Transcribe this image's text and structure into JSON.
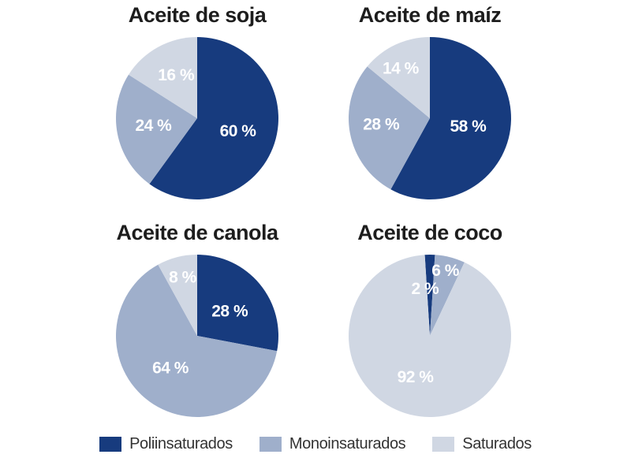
{
  "colors": {
    "poliinsaturados": "#173B7E",
    "monoinsaturados": "#9FAFCB",
    "saturados": "#D0D7E3"
  },
  "label_suffix": " %",
  "legend": [
    {
      "key": "poliinsaturados",
      "label": "Poliinsaturados"
    },
    {
      "key": "monoinsaturados",
      "label": "Monoinsaturados"
    },
    {
      "key": "saturados",
      "label": "Saturados"
    }
  ],
  "chart_data": [
    {
      "type": "pie",
      "title": "Aceite de soja",
      "rotation": 0,
      "slices": [
        {
          "name": "Poliinsaturados",
          "value": 60,
          "color": "poliinsaturados",
          "lp": [
            0.5,
            0.16
          ]
        },
        {
          "name": "Monoinsaturados",
          "value": 24,
          "color": "monoinsaturados",
          "lp": [
            -0.54,
            0.09
          ]
        },
        {
          "name": "Saturados",
          "value": 16,
          "color": "saturados",
          "lp": [
            -0.26,
            -0.53
          ]
        }
      ]
    },
    {
      "type": "pie",
      "title": "Aceite de maíz",
      "rotation": 0,
      "slices": [
        {
          "name": "Poliinsaturados",
          "value": 58,
          "color": "poliinsaturados",
          "lp": [
            0.47,
            0.1
          ]
        },
        {
          "name": "Monoinsaturados",
          "value": 28,
          "color": "monoinsaturados",
          "lp": [
            -0.6,
            0.08
          ]
        },
        {
          "name": "Saturados",
          "value": 14,
          "color": "saturados",
          "lp": [
            -0.36,
            -0.61
          ]
        }
      ]
    },
    {
      "type": "pie",
      "title": "Aceite de canola",
      "rotation": 0,
      "slices": [
        {
          "name": "Poliinsaturados",
          "value": 28,
          "color": "poliinsaturados",
          "lp": [
            0.4,
            -0.3
          ]
        },
        {
          "name": "Monoinsaturados",
          "value": 64,
          "color": "monoinsaturados",
          "lp": [
            -0.33,
            0.4
          ]
        },
        {
          "name": "Saturados",
          "value": 8,
          "color": "saturados",
          "lp": [
            -0.18,
            -0.72
          ]
        }
      ]
    },
    {
      "type": "pie",
      "title": "Aceite de coco",
      "rotation": -3.6,
      "slices": [
        {
          "name": "Poliinsaturados",
          "value": 2,
          "color": "poliinsaturados",
          "lp": [
            -0.06,
            -0.58
          ]
        },
        {
          "name": "Monoinsaturados",
          "value": 6,
          "color": "monoinsaturados",
          "lp": [
            0.19,
            -0.8
          ]
        },
        {
          "name": "Saturados",
          "value": 92,
          "color": "saturados",
          "lp": [
            -0.18,
            0.51
          ]
        }
      ]
    }
  ]
}
